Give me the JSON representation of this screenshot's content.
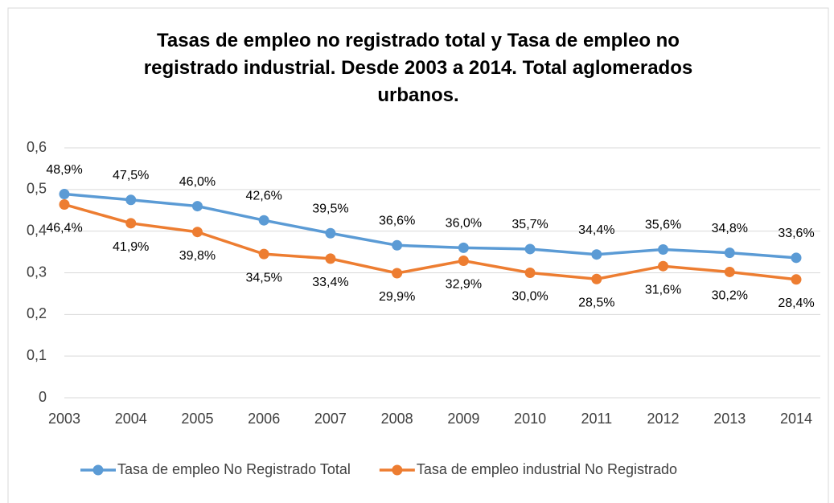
{
  "chart_data": {
    "type": "line",
    "title": "Tasas de empleo no registrado total y Tasa de empleo no registrado industrial. Desde 2003 a 2014. Total aglomerados urbanos.",
    "categories": [
      "2003",
      "2004",
      "2005",
      "2006",
      "2007",
      "2008",
      "2009",
      "2010",
      "2011",
      "2012",
      "2013",
      "2014"
    ],
    "series": [
      {
        "name": "Tasa de empleo  No Registrado Total",
        "color": "#5b9bd5",
        "values": [
          0.489,
          0.475,
          0.46,
          0.426,
          0.395,
          0.366,
          0.36,
          0.357,
          0.344,
          0.356,
          0.348,
          0.336
        ],
        "value_labels": [
          "48,9%",
          "47,5%",
          "46,0%",
          "42,6%",
          "39,5%",
          "36,6%",
          "36,0%",
          "35,7%",
          "34,4%",
          "35,6%",
          "34,8%",
          "33,6%"
        ]
      },
      {
        "name": "Tasa de empleo industrial No Registrado",
        "color": "#ed7d31",
        "values": [
          0.464,
          0.419,
          0.398,
          0.345,
          0.334,
          0.299,
          0.329,
          0.3,
          0.285,
          0.316,
          0.302,
          0.284
        ],
        "value_labels": [
          "46,4%",
          "41,9%",
          "39,8%",
          "34,5%",
          "33,4%",
          "29,9%",
          "32,9%",
          "30,0%",
          "28,5%",
          "31,6%",
          "30,2%",
          "28,4%"
        ]
      }
    ],
    "ylim": [
      0,
      0.6
    ],
    "yticks": [
      0,
      {
        "value": 0.1,
        "label": "0,1"
      },
      {
        "value": 0.2,
        "label": "0,2"
      },
      {
        "value": 0.3,
        "label": "0,3"
      },
      {
        "value": 0.4,
        "label": "0,4"
      },
      {
        "value": 0.5,
        "label": "0,5"
      },
      {
        "value": 0.6,
        "label": "0,6"
      }
    ],
    "grid": true,
    "legend": "bottom"
  }
}
